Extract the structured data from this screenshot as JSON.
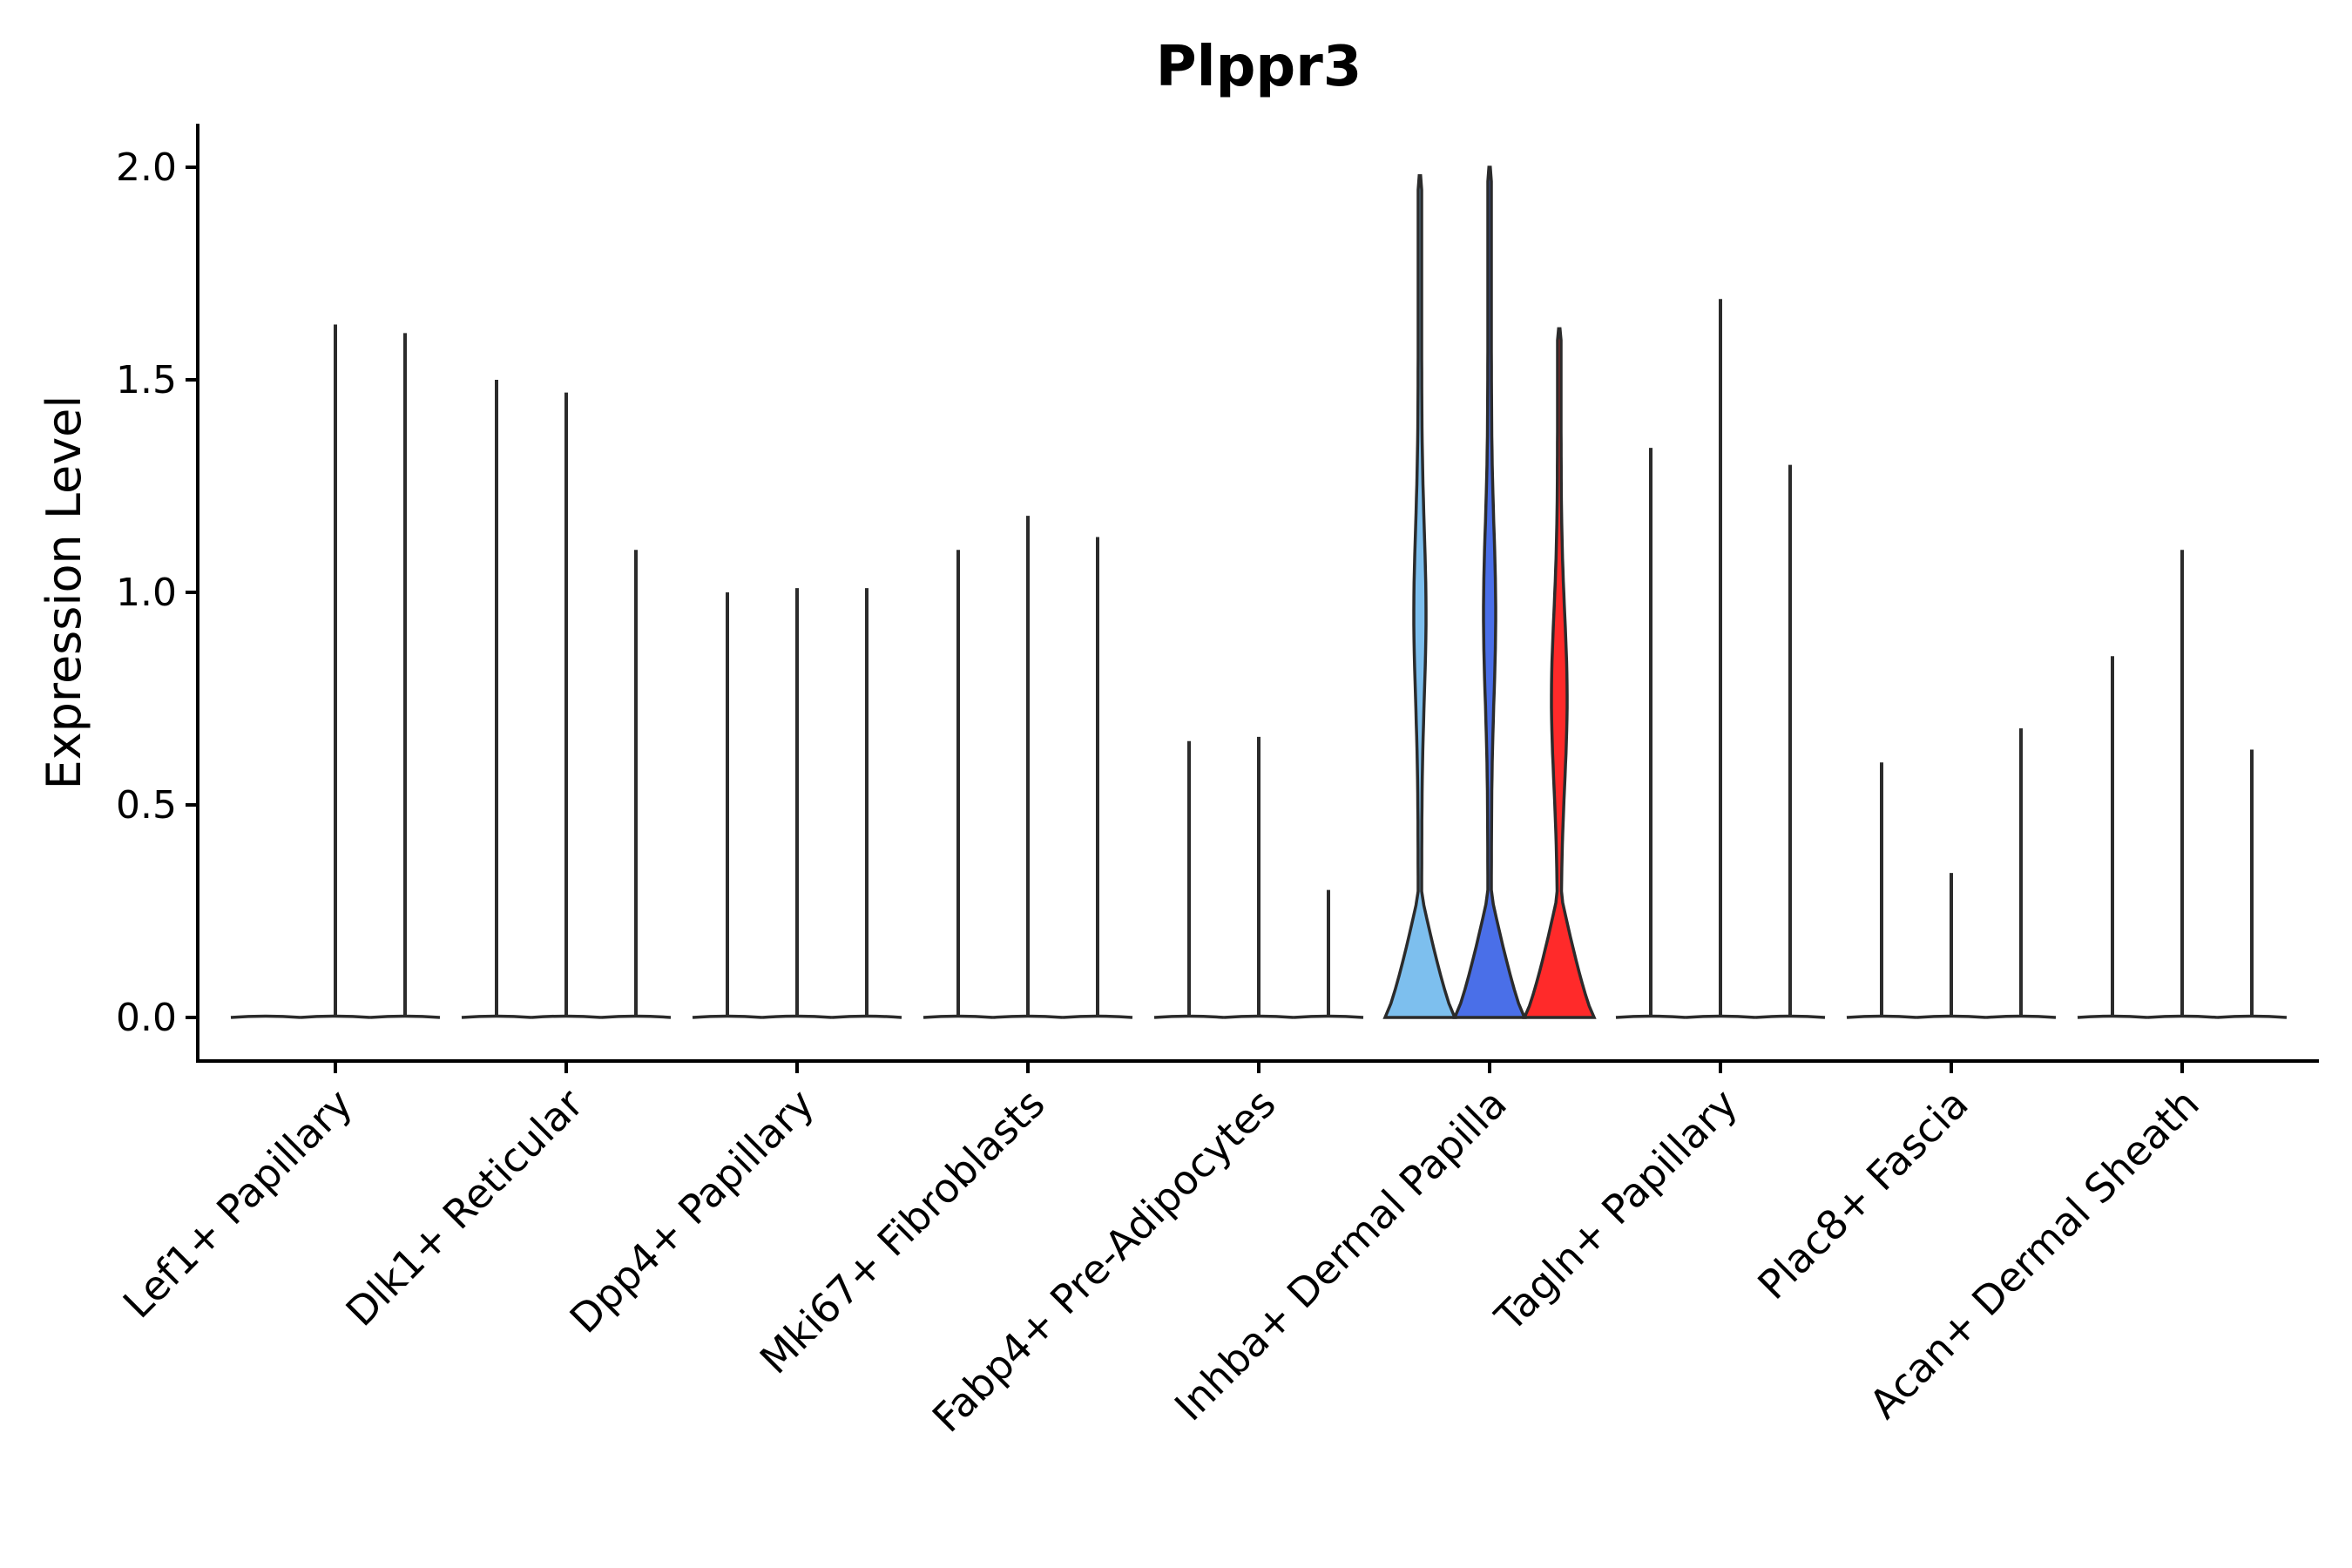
{
  "chart_data": {
    "type": "violin",
    "title": "Plppr3",
    "xlabel": "",
    "ylabel": "Expression Level",
    "ylim": [
      -0.1,
      2.1
    ],
    "yticks": [
      "0.0",
      "0.5",
      "1.0",
      "1.5",
      "2.0"
    ],
    "grid": false,
    "legend": "none",
    "categories": [
      "Lef1+ Papillary",
      "Dlk1+ Reticular",
      "Dpp4+ Papillary",
      "Mki67+ Fibroblasts",
      "Fabp4+ Pre-Adipocytes",
      "Inhba+ Dermal Papilla",
      "Tagln+ Papillary",
      "Plac8+ Fascia",
      "Acan+ Dermal Sheath"
    ],
    "violins": [
      {
        "group": 0,
        "slot": 0,
        "max": 0.0
      },
      {
        "group": 0,
        "slot": 1,
        "max": 1.63
      },
      {
        "group": 0,
        "slot": 2,
        "max": 1.61
      },
      {
        "group": 1,
        "slot": 0,
        "max": 1.5
      },
      {
        "group": 1,
        "slot": 1,
        "max": 1.47
      },
      {
        "group": 1,
        "slot": 2,
        "max": 1.1
      },
      {
        "group": 2,
        "slot": 0,
        "max": 1.0
      },
      {
        "group": 2,
        "slot": 1,
        "max": 1.01
      },
      {
        "group": 2,
        "slot": 2,
        "max": 1.01
      },
      {
        "group": 3,
        "slot": 0,
        "max": 1.1
      },
      {
        "group": 3,
        "slot": 1,
        "max": 1.18
      },
      {
        "group": 3,
        "slot": 2,
        "max": 1.13
      },
      {
        "group": 4,
        "slot": 0,
        "max": 0.65
      },
      {
        "group": 4,
        "slot": 1,
        "max": 0.66
      },
      {
        "group": 4,
        "slot": 2,
        "max": 0.3
      },
      {
        "group": 5,
        "slot": 0,
        "max": 1.98,
        "color": "#7dbfee"
      },
      {
        "group": 5,
        "slot": 1,
        "max": 2.0,
        "color": "#4a6fe8"
      },
      {
        "group": 5,
        "slot": 2,
        "max": 1.62,
        "color": "#ff2a2a"
      },
      {
        "group": 6,
        "slot": 0,
        "max": 1.34
      },
      {
        "group": 6,
        "slot": 1,
        "max": 1.69
      },
      {
        "group": 6,
        "slot": 2,
        "max": 1.3
      },
      {
        "group": 7,
        "slot": 0,
        "max": 0.6
      },
      {
        "group": 7,
        "slot": 1,
        "max": 0.34
      },
      {
        "group": 7,
        "slot": 2,
        "max": 0.68
      },
      {
        "group": 8,
        "slot": 0,
        "max": 0.85
      },
      {
        "group": 8,
        "slot": 1,
        "max": 1.1
      },
      {
        "group": 8,
        "slot": 2,
        "max": 0.63
      }
    ]
  }
}
